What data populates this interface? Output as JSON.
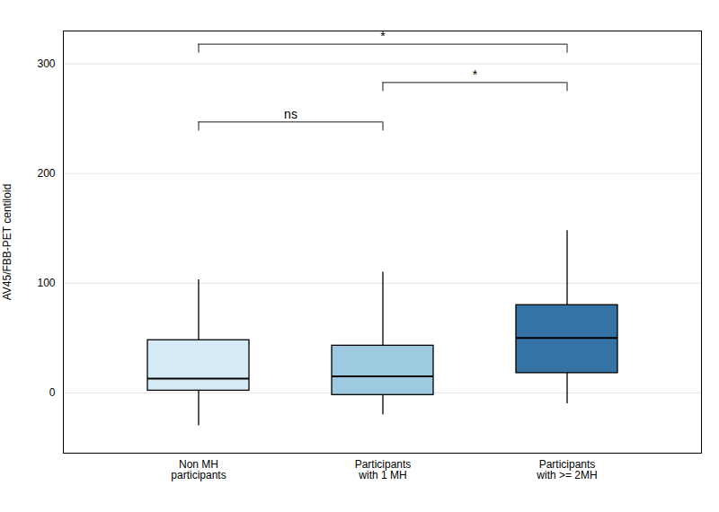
{
  "chart_data": {
    "type": "box",
    "categories": [
      "Non MH\nparticipants",
      "Participants\nwith 1 MH",
      "Participants\nwith >= 2MH"
    ],
    "box_data": [
      {
        "whislo": -30,
        "q1": 2,
        "med": 13,
        "q3": 48,
        "whishi": 103
      },
      {
        "whislo": -20,
        "q1": -2,
        "med": 15,
        "q3": 43,
        "whishi": 110
      },
      {
        "whislo": -10,
        "q1": 18,
        "med": 50,
        "q3": 80,
        "whishi": 148
      }
    ],
    "colors": [
      "#d4eaf5",
      "#9ecae1",
      "#3572a5"
    ],
    "ylabel": "AV45/FBB-PET centiloid",
    "ylim": [
      -55,
      330
    ],
    "yticks": [
      0,
      100,
      200,
      300
    ],
    "grid": true,
    "annotations": [
      {
        "x1": "Non MH\nparticipants",
        "x2": "Participants\nwith >= 2MH",
        "y": 318,
        "label": "*"
      },
      {
        "x1": "Participants\nwith 1 MH",
        "x2": "Participants\nwith >= 2MH",
        "y": 283,
        "label": "*"
      },
      {
        "x1": "Non MH\nparticipants",
        "x2": "Participants\nwith 1 MH",
        "y": 247,
        "label": "ns"
      }
    ]
  }
}
